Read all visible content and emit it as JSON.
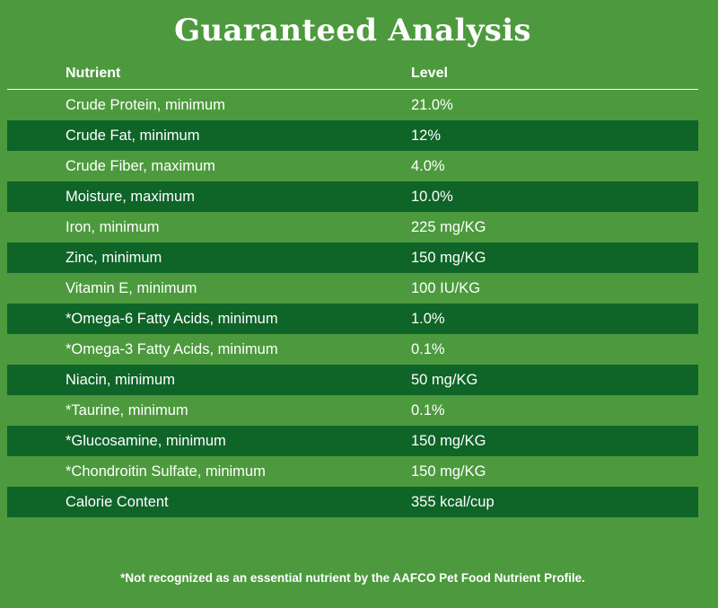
{
  "title": "Guaranteed Analysis",
  "table": {
    "headers": {
      "nutrient": "Nutrient",
      "level": "Level"
    },
    "rows": [
      {
        "nutrient": "Crude Protein, minimum",
        "level": "21.0%"
      },
      {
        "nutrient": "Crude Fat, minimum",
        "level": "12%"
      },
      {
        "nutrient": "Crude Fiber, maximum",
        "level": "4.0%"
      },
      {
        "nutrient": "Moisture, maximum",
        "level": "10.0%"
      },
      {
        "nutrient": "Iron, minimum",
        "level": "225 mg/KG"
      },
      {
        "nutrient": "Zinc, minimum",
        "level": "150 mg/KG"
      },
      {
        "nutrient": "Vitamin E, minimum",
        "level": "100 IU/KG"
      },
      {
        "nutrient": "*Omega-6 Fatty Acids, minimum",
        "level": "1.0%"
      },
      {
        "nutrient": "*Omega-3 Fatty Acids, minimum",
        "level": "0.1%"
      },
      {
        "nutrient": "Niacin, minimum",
        "level": "50 mg/KG"
      },
      {
        "nutrient": "*Taurine, minimum",
        "level": "0.1%"
      },
      {
        "nutrient": "*Glucosamine, minimum",
        "level": "150 mg/KG"
      },
      {
        "nutrient": "*Chondroitin Sulfate, minimum",
        "level": "150 mg/KG"
      },
      {
        "nutrient": "Calorie Content",
        "level": "355 kcal/cup"
      }
    ]
  },
  "footnote": "*Not recognized as an essential nutrient by the AAFCO Pet Food Nutrient Profile.",
  "colors": {
    "background": "#4c9a3d",
    "row_stripe": "#0f6428",
    "text": "#ffffff"
  }
}
